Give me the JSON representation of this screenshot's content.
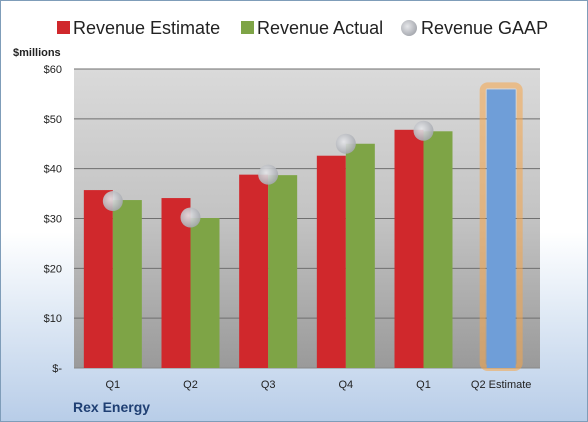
{
  "company": "Rex Energy",
  "chart_data": {
    "type": "bar",
    "unit_label": "$millions",
    "categories": [
      "Q1",
      "Q2",
      "Q3",
      "Q4",
      "Q1",
      "Q2 Estimate"
    ],
    "ylim": [
      0,
      60
    ],
    "yticks": [
      0,
      10,
      20,
      30,
      40,
      50,
      60
    ],
    "ytick_labels": [
      "$-",
      "$10",
      "$20",
      "$30",
      "$40",
      "$50",
      "$60"
    ],
    "grid": true,
    "legend_position": "top",
    "series": [
      {
        "name": "Revenue Estimate",
        "kind": "bar",
        "color": "#d0282c",
        "values": [
          35.7,
          34.1,
          38.8,
          42.6,
          47.8,
          null
        ]
      },
      {
        "name": "Revenue Actual",
        "kind": "bar",
        "color": "#7ea446",
        "values": [
          33.7,
          30.1,
          38.7,
          45.0,
          47.5,
          null
        ]
      },
      {
        "name": "Revenue GAAP",
        "kind": "marker",
        "color": "#b4b6bc",
        "values": [
          33.5,
          30.2,
          38.8,
          45.0,
          47.6,
          null
        ]
      }
    ],
    "highlight": {
      "category_index": 5,
      "value": 55.9,
      "color": "#6f9ed8",
      "glow_color": "#f5a54a"
    }
  }
}
